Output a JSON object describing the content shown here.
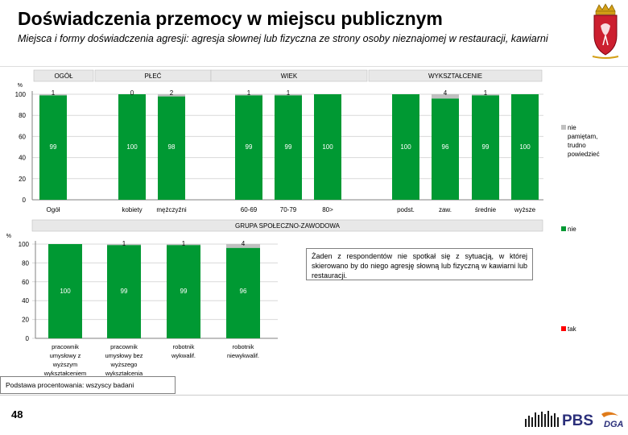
{
  "title": "Doświadczenia przemocy w miejscu publicznym",
  "subtitle": "Miejsca i formy doświadczenia agresji: agresja słownej lub fizyczna ze strony osoby nieznajomej w restauracji, kawiarni",
  "note": "Żaden z respondentów nie spotkał się z sytuacją, w której skierowano by do niego agresję słowną lub fizyczną w kawiarni lub restauracji.",
  "basis": "Podstawa procentowania: wszyscy badani",
  "page_number": "48",
  "pbs_logo": "PBS",
  "dga_logo": "DGA",
  "colors": {
    "nie": "#009933",
    "nie_pamietam": "#c0c0c0",
    "tak": "#ff0000",
    "header_bg": "#e8e8e8"
  },
  "legend": [
    {
      "label": "nie pamiętam, trudno powiedzieć",
      "color": "#c0c0c0"
    },
    {
      "label": "nie",
      "color": "#009933"
    },
    {
      "label": "tak",
      "color": "#ff0000"
    }
  ],
  "chart_data": [
    {
      "type": "bar",
      "stacked": true,
      "ylabel": "%",
      "ylim": [
        0,
        100
      ],
      "yticks": [
        0,
        20,
        40,
        60,
        80,
        100
      ],
      "groups": [
        {
          "label": "OGÓŁ",
          "categories": [
            "Ogół"
          ]
        },
        {
          "label": "PŁEĆ",
          "categories": [
            "kobiety",
            "mężczyźni"
          ]
        },
        {
          "label": "WIEK",
          "categories": [
            "60-69",
            "70-79",
            "80>"
          ]
        },
        {
          "label": "WYKSZTAŁCENIE",
          "categories": [
            "podst.",
            "zaw.",
            "średnie",
            "wyższe"
          ]
        }
      ],
      "categories": [
        "Ogół",
        "kobiety",
        "mężczyźni",
        "60-69",
        "70-79",
        "80>",
        "podst.",
        "zaw.",
        "średnie",
        "wyższe"
      ],
      "series": [
        {
          "name": "nie",
          "values": [
            99,
            100,
            98,
            99,
            99,
            100,
            100,
            96,
            99,
            100
          ]
        },
        {
          "name": "nie pamiętam, trudno powiedzieć",
          "values": [
            1,
            0,
            2,
            1,
            1,
            0,
            0,
            4,
            1,
            0
          ]
        }
      ],
      "top_labels": [
        "1",
        "0",
        "2",
        "1",
        "1",
        "",
        "",
        "4",
        "1",
        ""
      ],
      "mid_labels": [
        "99",
        "100",
        "98",
        "99",
        "99",
        "100",
        "100",
        "96",
        "99",
        "100"
      ]
    },
    {
      "type": "bar",
      "stacked": true,
      "title": "GRUPA SPOŁECZNO-ZAWODOWA",
      "ylabel": "%",
      "ylim": [
        0,
        100
      ],
      "yticks": [
        0,
        20,
        40,
        60,
        80,
        100
      ],
      "categories": [
        "pracownik umysłowy z wyższym wykształceniem",
        "pracownik umysłowy bez wyższego wykształcenia",
        "robotnik wykwalif.",
        "robotnik niewykwalif."
      ],
      "category_lines": [
        [
          "pracownik",
          "umysłowy z",
          "wyższym",
          "wykształceniem"
        ],
        [
          "pracownik",
          "umysłowy bez",
          "wyższego",
          "wykształcenia"
        ],
        [
          "robotnik",
          "wykwalif."
        ],
        [
          "robotnik",
          "niewykwalif."
        ]
      ],
      "series": [
        {
          "name": "nie",
          "values": [
            100,
            99,
            99,
            96
          ]
        },
        {
          "name": "nie pamiętam, trudno powiedzieć",
          "values": [
            0,
            1,
            1,
            4
          ]
        }
      ],
      "top_labels": [
        "",
        "1",
        "1",
        "4"
      ],
      "mid_labels": [
        "100",
        "99",
        "99",
        "96"
      ]
    }
  ]
}
